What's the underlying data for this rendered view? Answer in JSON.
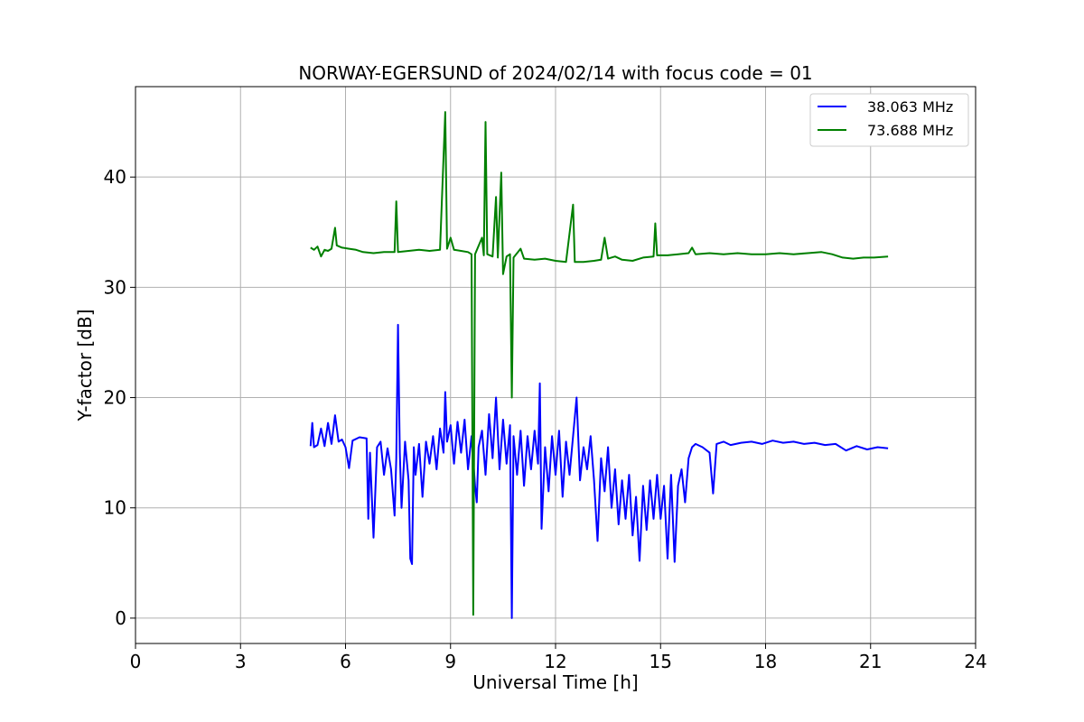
{
  "chart_data": {
    "type": "line",
    "title": "NORWAY-EGERSUND of 2024/02/14 with focus code = 01",
    "xlabel": "Universal Time [h]",
    "ylabel": "Y-factor [dB]",
    "xlim": [
      0,
      24
    ],
    "ylim": [
      -2.3,
      48.2
    ],
    "xticks": [
      0,
      3,
      6,
      9,
      12,
      15,
      18,
      21,
      24
    ],
    "yticks": [
      0,
      10,
      20,
      30,
      40
    ],
    "grid": true,
    "legend_position": "top-right",
    "series": [
      {
        "name": "38.063 MHz",
        "color": "#0000ff",
        "points": [
          [
            5.0,
            15.6
          ],
          [
            5.05,
            17.7
          ],
          [
            5.1,
            15.5
          ],
          [
            5.2,
            15.7
          ],
          [
            5.3,
            17.2
          ],
          [
            5.4,
            15.6
          ],
          [
            5.5,
            17.7
          ],
          [
            5.6,
            15.8
          ],
          [
            5.7,
            18.4
          ],
          [
            5.8,
            16.0
          ],
          [
            5.9,
            16.2
          ],
          [
            6.0,
            15.5
          ],
          [
            6.1,
            13.6
          ],
          [
            6.2,
            16.1
          ],
          [
            6.4,
            16.4
          ],
          [
            6.6,
            16.3
          ],
          [
            6.65,
            9.0
          ],
          [
            6.7,
            15.0
          ],
          [
            6.8,
            7.3
          ],
          [
            6.9,
            15.5
          ],
          [
            7.0,
            16.0
          ],
          [
            7.1,
            13.0
          ],
          [
            7.2,
            15.4
          ],
          [
            7.3,
            13.5
          ],
          [
            7.4,
            9.3
          ],
          [
            7.45,
            14.5
          ],
          [
            7.5,
            26.6
          ],
          [
            7.55,
            15.0
          ],
          [
            7.6,
            10.0
          ],
          [
            7.7,
            16.0
          ],
          [
            7.8,
            12.5
          ],
          [
            7.85,
            5.4
          ],
          [
            7.9,
            4.9
          ],
          [
            7.95,
            15.5
          ],
          [
            8.0,
            13.0
          ],
          [
            8.1,
            15.8
          ],
          [
            8.2,
            11.0
          ],
          [
            8.3,
            16.0
          ],
          [
            8.4,
            14.0
          ],
          [
            8.5,
            16.5
          ],
          [
            8.6,
            13.5
          ],
          [
            8.7,
            17.2
          ],
          [
            8.8,
            15.0
          ],
          [
            8.85,
            20.5
          ],
          [
            8.9,
            16.0
          ],
          [
            9.0,
            17.5
          ],
          [
            9.1,
            14.0
          ],
          [
            9.2,
            17.8
          ],
          [
            9.3,
            15.0
          ],
          [
            9.4,
            18.0
          ],
          [
            9.5,
            13.5
          ],
          [
            9.6,
            16.5
          ],
          [
            9.7,
            12.0
          ],
          [
            9.75,
            10.5
          ],
          [
            9.8,
            15.5
          ],
          [
            9.9,
            17.0
          ],
          [
            10.0,
            13.0
          ],
          [
            10.1,
            18.5
          ],
          [
            10.2,
            14.5
          ],
          [
            10.3,
            20.0
          ],
          [
            10.4,
            13.5
          ],
          [
            10.5,
            18.0
          ],
          [
            10.6,
            14.0
          ],
          [
            10.7,
            17.5
          ],
          [
            10.75,
            0.0
          ],
          [
            10.8,
            16.5
          ],
          [
            10.9,
            13.0
          ],
          [
            11.0,
            17.0
          ],
          [
            11.1,
            12.0
          ],
          [
            11.2,
            16.5
          ],
          [
            11.3,
            13.5
          ],
          [
            11.4,
            17.0
          ],
          [
            11.5,
            14.0
          ],
          [
            11.55,
            21.3
          ],
          [
            11.6,
            8.1
          ],
          [
            11.7,
            15.5
          ],
          [
            11.8,
            11.5
          ],
          [
            11.9,
            16.5
          ],
          [
            12.0,
            13.0
          ],
          [
            12.1,
            17.0
          ],
          [
            12.2,
            11.0
          ],
          [
            12.3,
            16.0
          ],
          [
            12.4,
            13.0
          ],
          [
            12.5,
            16.5
          ],
          [
            12.6,
            20.0
          ],
          [
            12.7,
            12.5
          ],
          [
            12.8,
            15.5
          ],
          [
            12.9,
            13.5
          ],
          [
            13.0,
            16.5
          ],
          [
            13.1,
            12.5
          ],
          [
            13.2,
            7.0
          ],
          [
            13.3,
            14.5
          ],
          [
            13.4,
            11.5
          ],
          [
            13.5,
            15.5
          ],
          [
            13.6,
            10.0
          ],
          [
            13.7,
            13.5
          ],
          [
            13.8,
            8.5
          ],
          [
            13.9,
            12.5
          ],
          [
            14.0,
            9.0
          ],
          [
            14.1,
            13.0
          ],
          [
            14.2,
            7.5
          ],
          [
            14.3,
            11.0
          ],
          [
            14.4,
            5.2
          ],
          [
            14.5,
            12.0
          ],
          [
            14.6,
            8.0
          ],
          [
            14.7,
            12.5
          ],
          [
            14.8,
            9.0
          ],
          [
            14.9,
            13.0
          ],
          [
            15.0,
            9.0
          ],
          [
            15.1,
            12.0
          ],
          [
            15.2,
            5.4
          ],
          [
            15.3,
            13.0
          ],
          [
            15.4,
            5.1
          ],
          [
            15.5,
            12.0
          ],
          [
            15.6,
            13.5
          ],
          [
            15.7,
            10.5
          ],
          [
            15.8,
            14.5
          ],
          [
            15.9,
            15.5
          ],
          [
            16.0,
            15.8
          ],
          [
            16.2,
            15.5
          ],
          [
            16.4,
            15.0
          ],
          [
            16.5,
            11.3
          ],
          [
            16.6,
            15.8
          ],
          [
            16.8,
            16.0
          ],
          [
            17.0,
            15.7
          ],
          [
            17.3,
            15.9
          ],
          [
            17.6,
            16.0
          ],
          [
            17.9,
            15.8
          ],
          [
            18.2,
            16.1
          ],
          [
            18.5,
            15.9
          ],
          [
            18.8,
            16.0
          ],
          [
            19.1,
            15.8
          ],
          [
            19.4,
            15.9
          ],
          [
            19.7,
            15.7
          ],
          [
            20.0,
            15.8
          ],
          [
            20.3,
            15.2
          ],
          [
            20.6,
            15.6
          ],
          [
            20.9,
            15.3
          ],
          [
            21.2,
            15.5
          ],
          [
            21.5,
            15.4
          ]
        ]
      },
      {
        "name": "73.688 MHz",
        "color": "#008000",
        "points": [
          [
            5.0,
            33.6
          ],
          [
            5.1,
            33.4
          ],
          [
            5.2,
            33.7
          ],
          [
            5.3,
            32.8
          ],
          [
            5.4,
            33.4
          ],
          [
            5.5,
            33.3
          ],
          [
            5.6,
            33.5
          ],
          [
            5.7,
            35.4
          ],
          [
            5.75,
            33.8
          ],
          [
            5.9,
            33.6
          ],
          [
            6.1,
            33.5
          ],
          [
            6.3,
            33.4
          ],
          [
            6.5,
            33.2
          ],
          [
            6.8,
            33.1
          ],
          [
            7.1,
            33.2
          ],
          [
            7.4,
            33.2
          ],
          [
            7.45,
            37.8
          ],
          [
            7.5,
            33.2
          ],
          [
            7.8,
            33.3
          ],
          [
            8.1,
            33.4
          ],
          [
            8.4,
            33.3
          ],
          [
            8.7,
            33.4
          ],
          [
            8.85,
            45.9
          ],
          [
            8.9,
            33.5
          ],
          [
            9.0,
            34.5
          ],
          [
            9.1,
            33.4
          ],
          [
            9.3,
            33.3
          ],
          [
            9.5,
            33.2
          ],
          [
            9.6,
            33.0
          ],
          [
            9.65,
            0.3
          ],
          [
            9.7,
            33.0
          ],
          [
            9.9,
            34.5
          ],
          [
            9.95,
            32.9
          ],
          [
            10.0,
            45.0
          ],
          [
            10.05,
            33.0
          ],
          [
            10.2,
            32.8
          ],
          [
            10.3,
            38.2
          ],
          [
            10.35,
            32.7
          ],
          [
            10.45,
            40.4
          ],
          [
            10.5,
            31.2
          ],
          [
            10.6,
            32.8
          ],
          [
            10.7,
            33.0
          ],
          [
            10.75,
            20.0
          ],
          [
            10.8,
            32.7
          ],
          [
            11.0,
            33.5
          ],
          [
            11.1,
            32.6
          ],
          [
            11.4,
            32.5
          ],
          [
            11.7,
            32.6
          ],
          [
            12.0,
            32.4
          ],
          [
            12.3,
            32.3
          ],
          [
            12.5,
            37.5
          ],
          [
            12.55,
            32.3
          ],
          [
            12.8,
            32.3
          ],
          [
            13.1,
            32.4
          ],
          [
            13.3,
            32.5
          ],
          [
            13.4,
            34.5
          ],
          [
            13.5,
            32.6
          ],
          [
            13.7,
            32.8
          ],
          [
            13.9,
            32.5
          ],
          [
            14.2,
            32.4
          ],
          [
            14.5,
            32.7
          ],
          [
            14.8,
            32.8
          ],
          [
            14.85,
            35.8
          ],
          [
            14.9,
            32.9
          ],
          [
            15.2,
            32.9
          ],
          [
            15.5,
            33.0
          ],
          [
            15.8,
            33.1
          ],
          [
            15.9,
            33.6
          ],
          [
            16.0,
            33.0
          ],
          [
            16.4,
            33.1
          ],
          [
            16.8,
            33.0
          ],
          [
            17.2,
            33.1
          ],
          [
            17.6,
            33.0
          ],
          [
            18.0,
            33.0
          ],
          [
            18.4,
            33.1
          ],
          [
            18.8,
            33.0
          ],
          [
            19.2,
            33.1
          ],
          [
            19.6,
            33.2
          ],
          [
            19.9,
            33.0
          ],
          [
            20.2,
            32.7
          ],
          [
            20.5,
            32.6
          ],
          [
            20.8,
            32.7
          ],
          [
            21.1,
            32.7
          ],
          [
            21.5,
            32.8
          ]
        ]
      }
    ]
  }
}
